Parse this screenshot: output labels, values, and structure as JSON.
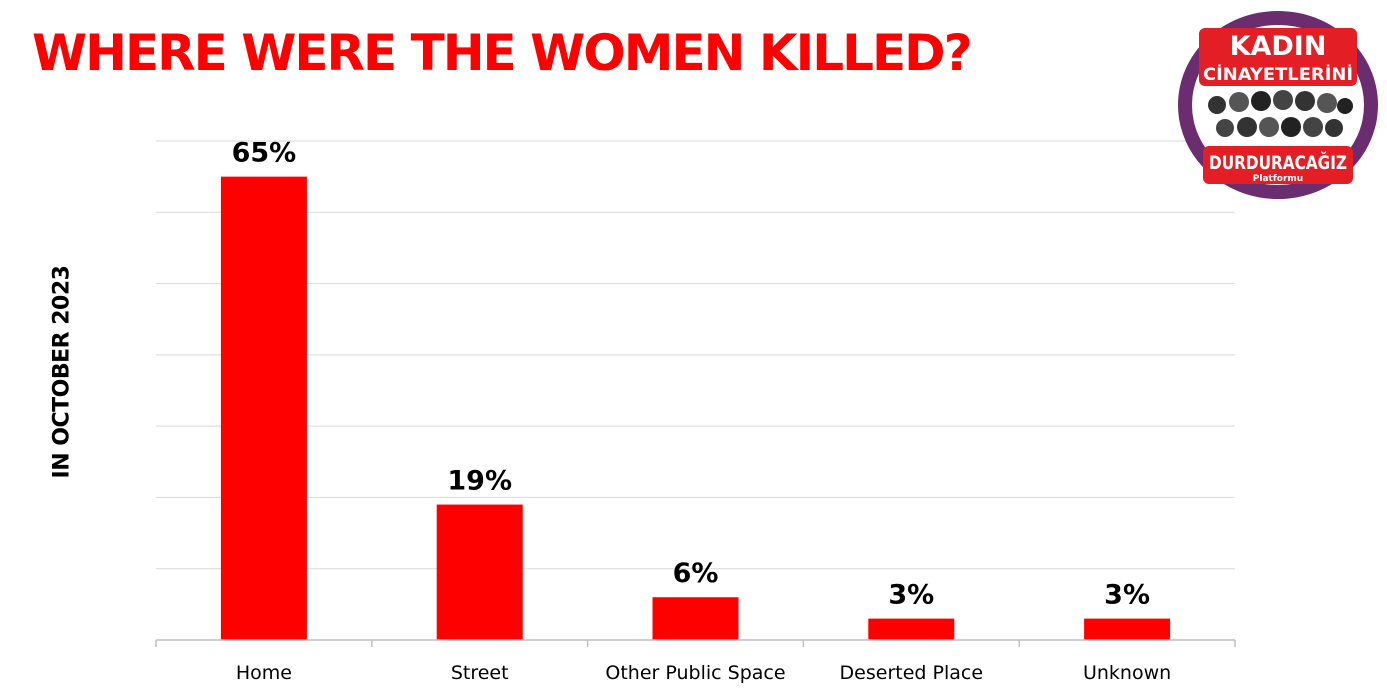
{
  "chart_data": {
    "type": "bar",
    "title": "WHERE WERE THE WOMEN KILLED?",
    "ylabel": "IN OCTOBER 2023",
    "xlabel": "",
    "categories": [
      "Home",
      "Street",
      "Other Public Space",
      "Deserted Place",
      "Unknown"
    ],
    "values": [
      65,
      19,
      6,
      3,
      3
    ],
    "data_labels": [
      "65%",
      "19%",
      "6%",
      "3%",
      "3%"
    ],
    "ylim": [
      0,
      70
    ],
    "grid": true,
    "bar_color": "#ff0000"
  },
  "logo": {
    "line1": "KADIN",
    "line2": "CİNAYETLERİNİ",
    "line3": "DURDURACAĞIZ",
    "line4": "Platformu",
    "ring_color": "#6b2d6f",
    "band_color": "#e31e24"
  }
}
